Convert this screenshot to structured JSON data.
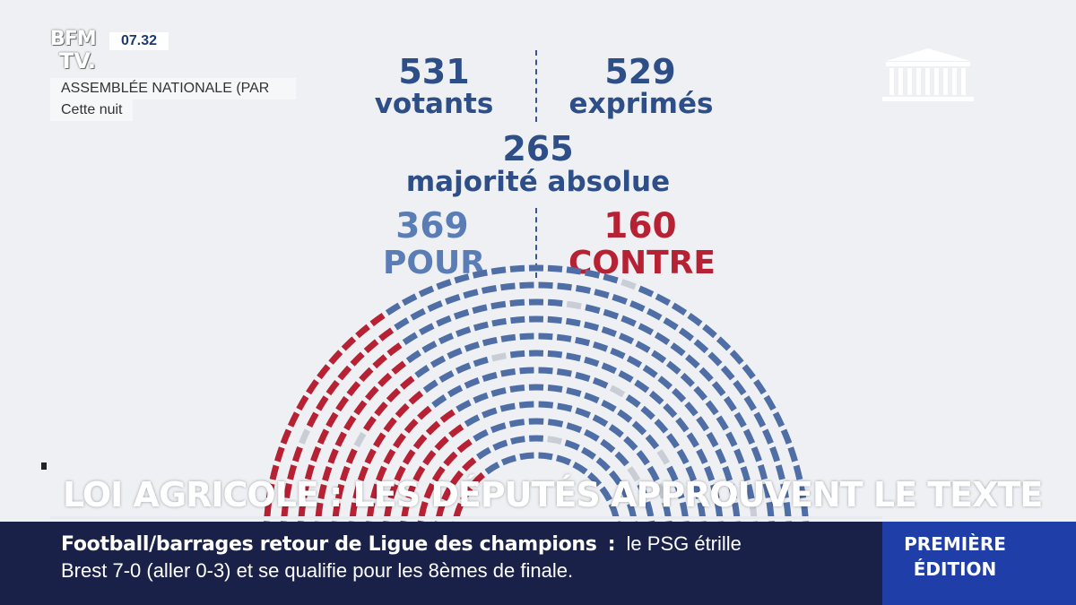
{
  "channel": {
    "logo_line1": "BFM",
    "logo_line2": "TV.",
    "time": "07.32",
    "location": "ASSEMBLÉE NATIONALE (PAR",
    "when": "Cette nuit"
  },
  "vote": {
    "votants_count": "531",
    "votants_label": "votants",
    "exprimes_count": "529",
    "exprimes_label": "exprimés",
    "majority_count": "265",
    "majority_label": "majorité absolue",
    "pour_count": "369",
    "pour_label": "POUR",
    "contre_count": "160",
    "contre_label": "CONTRE"
  },
  "hemicycle": {
    "pour_seats": 369,
    "contre_seats": 160,
    "colors": {
      "pour": "#4f6ea6",
      "contre": "#b72134",
      "empty": "#c9cdd6"
    }
  },
  "headline": "LOI AGRICOLE : LES DÉPUTÉS APPROUVENT LE TEXTE",
  "ticker": {
    "topic": "Football/barrages retour de Ligue des champions",
    "separator": ":",
    "line1_rest": "le PSG étrille",
    "line2": "Brest 7-0 (aller 0-3) et se qualifie pour les 8èmes de finale."
  },
  "edition": {
    "line1": "PREMIÈRE",
    "line2": "ÉDITION"
  },
  "colors": {
    "blue": "#2d4e86",
    "red": "#b72134",
    "ticker_bg": "#192148",
    "edition_bg": "#1f3ea8"
  }
}
